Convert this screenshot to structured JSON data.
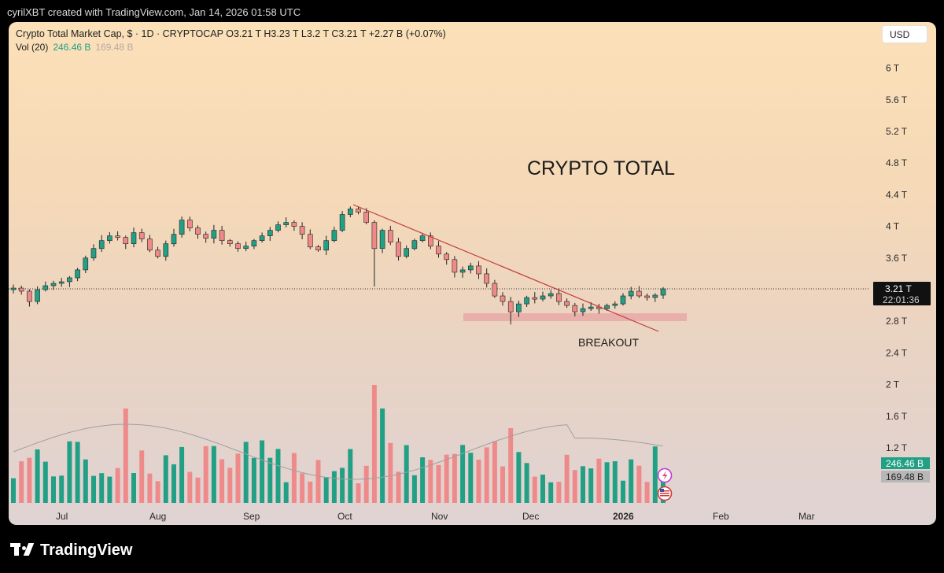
{
  "header": {
    "creator_line": "cyrilXBT created with TradingView.com, Jan 14, 2026 01:58 UTC"
  },
  "legend": {
    "symbol_line": "Crypto Total Market Cap, $ · 1D · CRYPTOCAP  O3.21 T  H3.23 T  L3.2 T  C3.21 T  +2.27 B (+0.07%)",
    "vol_label": "Vol (20)",
    "vol_value": "246.46 B",
    "vol_ma_value": "169.48 B"
  },
  "currency_button": "USD",
  "annotations": {
    "title": "CRYPTO TOTAL",
    "breakout": "BREAKOUT"
  },
  "price_tag": {
    "value": "3.21 T",
    "countdown": "22:01:36"
  },
  "volume_tags": {
    "volume": "246.46 B",
    "ma": "169.48 B"
  },
  "brand": "TradingView",
  "colors": {
    "up": "#22a085",
    "down": "#ef8a8a",
    "trendline": "#c43a3a",
    "zone": "#e8a3a3",
    "vol_ma": "#a0a0a0"
  },
  "icons": [
    "lightning-event-icon",
    "us-flag-event-icon"
  ],
  "chart_data": {
    "type": "candlestick",
    "title": "Crypto Total Market Cap",
    "interval": "1D",
    "y_ticks": [
      "6 T",
      "5.6 T",
      "5.2 T",
      "4.8 T",
      "4.4 T",
      "4 T",
      "3.6 T",
      "3.2 T",
      "2.8 T",
      "2.4 T",
      "2 T",
      "1.6 T",
      "1.2 T"
    ],
    "y_tick_values": [
      6,
      5.6,
      5.2,
      4.8,
      4.4,
      4,
      3.6,
      3.2,
      2.8,
      2.4,
      2,
      1.6,
      1.2
    ],
    "x_ticks": [
      "Jul",
      "Aug",
      "Sep",
      "Oct",
      "Nov",
      "Dec",
      "2026",
      "Feb",
      "Mar"
    ],
    "price_close_series_T": [
      3.22,
      3.18,
      3.05,
      3.2,
      3.25,
      3.28,
      3.3,
      3.35,
      3.45,
      3.6,
      3.72,
      3.82,
      3.88,
      3.86,
      3.78,
      3.92,
      3.84,
      3.7,
      3.62,
      3.78,
      3.9,
      4.08,
      3.98,
      3.9,
      3.85,
      3.95,
      3.82,
      3.78,
      3.72,
      3.75,
      3.82,
      3.88,
      3.95,
      4.02,
      4.05,
      4.0,
      3.9,
      3.74,
      3.7,
      3.82,
      3.95,
      4.15,
      4.22,
      4.18,
      4.05,
      3.72,
      3.95,
      3.8,
      3.62,
      3.72,
      3.82,
      3.88,
      3.75,
      3.65,
      3.58,
      3.42,
      3.45,
      3.5,
      3.4,
      3.28,
      3.12,
      3.05,
      2.92,
      3.02,
      3.1,
      3.08,
      3.12,
      3.15,
      3.05,
      3.0,
      2.92,
      2.96,
      2.98,
      2.96,
      3.0,
      3.02,
      3.12,
      3.18,
      3.12,
      3.1,
      3.13,
      3.21
    ],
    "volume_ma_label": "Vol (20)",
    "last_price": "3.21 T",
    "trendline": "descending resistance from early Oct high to mid Jan",
    "support_zone_T": [
      2.81,
      2.91
    ]
  }
}
